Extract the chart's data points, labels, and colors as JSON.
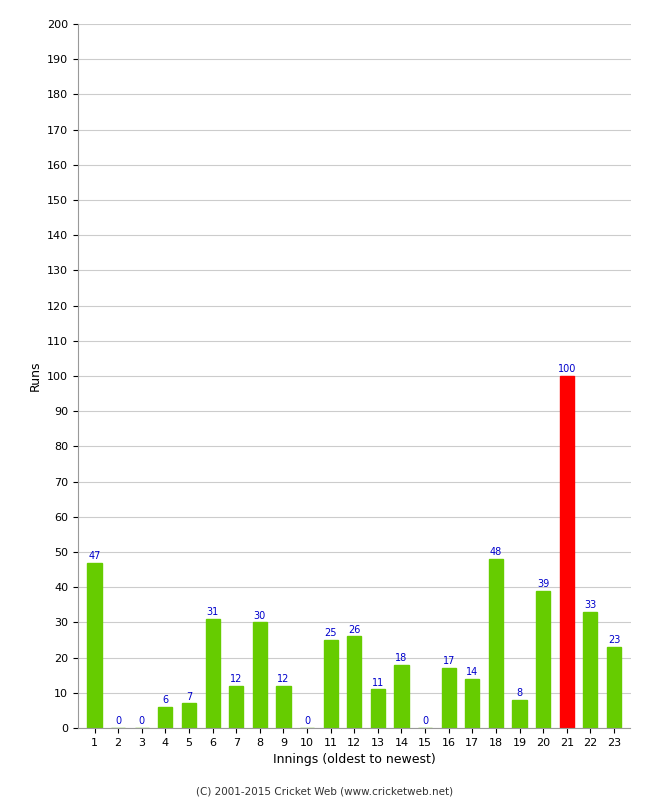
{
  "xlabel": "Innings (oldest to newest)",
  "ylabel": "Runs",
  "categories": [
    1,
    2,
    3,
    4,
    5,
    6,
    7,
    8,
    9,
    10,
    11,
    12,
    13,
    14,
    15,
    16,
    17,
    18,
    19,
    20,
    21,
    22,
    23
  ],
  "values": [
    47,
    0,
    0,
    6,
    7,
    31,
    12,
    30,
    12,
    0,
    25,
    26,
    11,
    18,
    0,
    17,
    14,
    48,
    8,
    39,
    100,
    33,
    23
  ],
  "bar_colors": [
    "#66cc00",
    "#66cc00",
    "#66cc00",
    "#66cc00",
    "#66cc00",
    "#66cc00",
    "#66cc00",
    "#66cc00",
    "#66cc00",
    "#66cc00",
    "#66cc00",
    "#66cc00",
    "#66cc00",
    "#66cc00",
    "#66cc00",
    "#66cc00",
    "#66cc00",
    "#66cc00",
    "#66cc00",
    "#66cc00",
    "#ff0000",
    "#66cc00",
    "#66cc00"
  ],
  "ylim": [
    0,
    200
  ],
  "yticks": [
    0,
    10,
    20,
    30,
    40,
    50,
    60,
    70,
    80,
    90,
    100,
    110,
    120,
    130,
    140,
    150,
    160,
    170,
    180,
    190,
    200
  ],
  "label_color": "#0000cc",
  "background_color": "#ffffff",
  "grid_color": "#cccccc",
  "footer": "(C) 2001-2015 Cricket Web (www.cricketweb.net)"
}
